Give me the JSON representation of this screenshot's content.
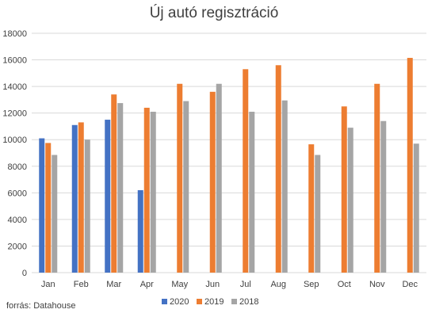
{
  "source_note": "forrás: Datahouse",
  "chart_data": {
    "type": "bar",
    "title": "Új autó regisztráció",
    "xlabel": "",
    "ylabel": "",
    "ylim": [
      0,
      18000
    ],
    "yticks": [
      "0",
      "2000",
      "4000",
      "6000",
      "8000",
      "10000",
      "12000",
      "14000",
      "16000",
      "18000"
    ],
    "grid": true,
    "legend_position": "bottom",
    "categories": [
      "Jan",
      "Feb",
      "Mar",
      "Apr",
      "May",
      "Jun",
      "Jul",
      "Aug",
      "Sep",
      "Oct",
      "Nov",
      "Dec"
    ],
    "series": [
      {
        "name": "2020",
        "color": "#4472c4",
        "values": [
          10100,
          11100,
          11500,
          6200,
          null,
          null,
          null,
          null,
          null,
          null,
          null,
          null
        ]
      },
      {
        "name": "2019",
        "color": "#ed7d31",
        "values": [
          9750,
          11300,
          13400,
          12400,
          14200,
          13600,
          15300,
          15600,
          9650,
          12500,
          14200,
          16150
        ]
      },
      {
        "name": "2018",
        "color": "#a5a5a5",
        "values": [
          8850,
          10000,
          12750,
          12100,
          12900,
          14200,
          12100,
          12950,
          8850,
          10900,
          11400,
          9700
        ]
      }
    ]
  }
}
